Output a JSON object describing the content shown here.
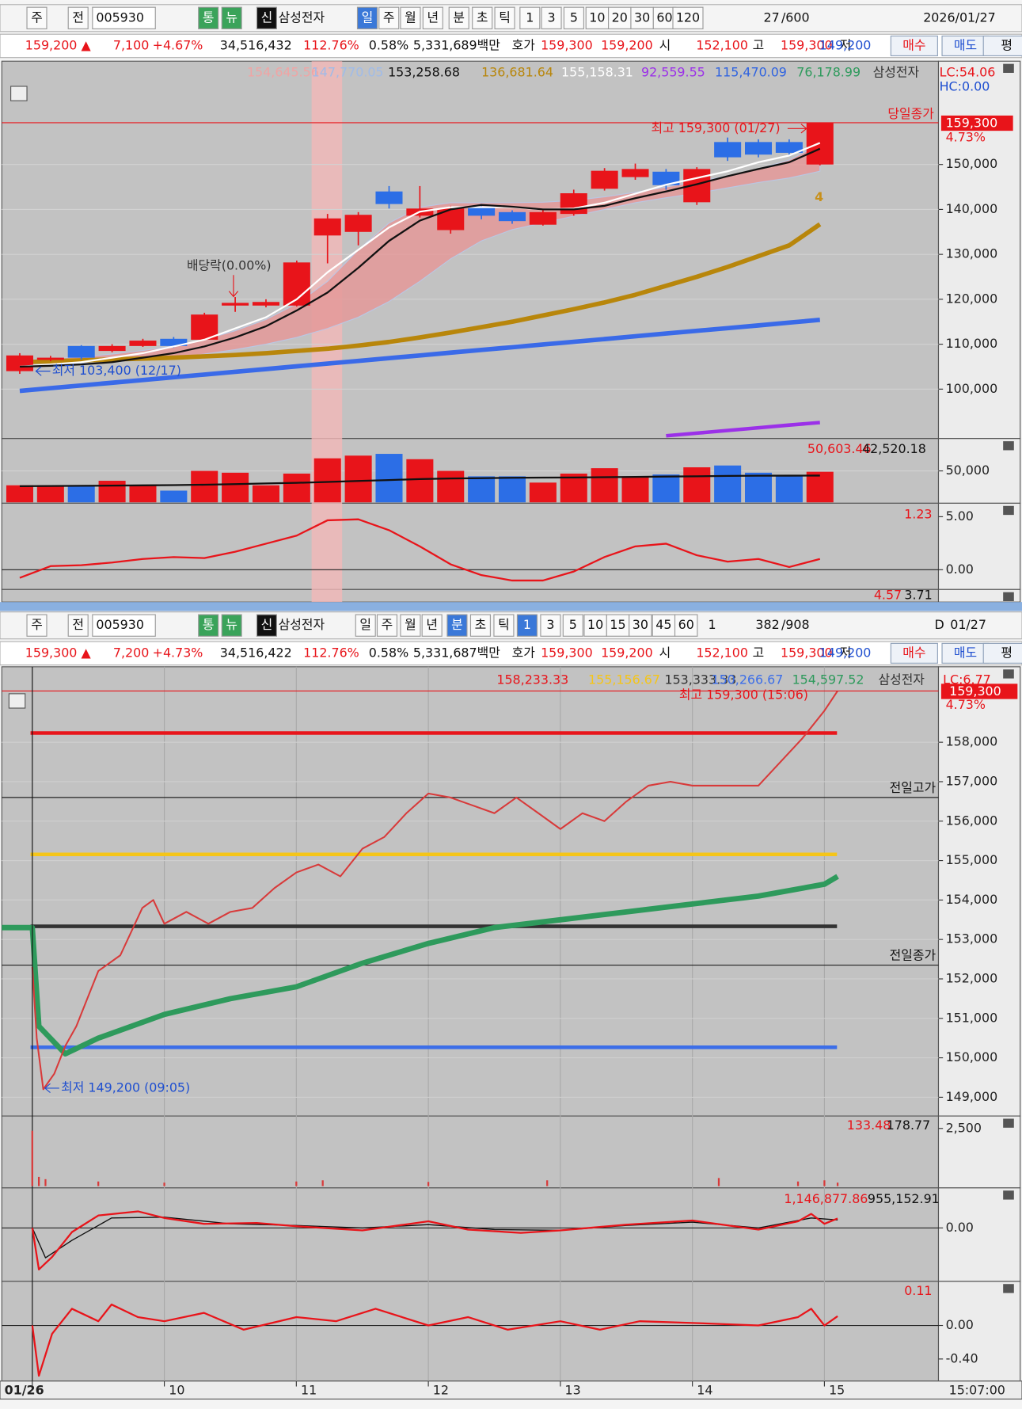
{
  "top_toolbar": {
    "items": [
      "주",
      "전",
      "005930",
      "통",
      "뉴",
      "신",
      "삼성전자",
      "일",
      "주",
      "월",
      "년",
      "분",
      "초",
      "틱",
      "1",
      "3",
      "5",
      "10",
      "20",
      "30",
      "60",
      "120",
      "27",
      "/600",
      "2026/01/27"
    ]
  },
  "top_quote": {
    "items": [
      "159,200 ▲",
      "7,100",
      "+4.67%",
      "34,516,432",
      "112.76%",
      "0.58%",
      "5,331,689백만",
      "호가",
      "159,300",
      "159,200",
      "시",
      "152,100",
      "고",
      "159,300",
      "저",
      "149,200",
      "매수",
      "매도",
      "평"
    ]
  },
  "daily_chart": {
    "legend": [
      {
        "text": "154,645.56",
        "color": "#f0a4a4"
      },
      {
        "text": "147,770.05",
        "color": "#9fbbe9"
      },
      {
        "text": "153,258.68",
        "color": "#111111"
      },
      {
        "text": "136,681.64",
        "color": "#b8860b"
      },
      {
        "text": "155,158.31",
        "color": "#ffffff"
      },
      {
        "text": "92,559.55",
        "color": "#9b30e8"
      },
      {
        "text": "115,470.09",
        "color": "#2f63e0"
      },
      {
        "text": "76,178.99",
        "color": "#2e9a5c"
      },
      {
        "text": "삼성전자",
        "color": "#333333"
      }
    ],
    "lc": "LC:54.06",
    "hc": "HC:0.00",
    "price": {
      "ylim": [
        89200,
        172600
      ],
      "yticks": [
        {
          "value": 100000,
          "label": "100,000"
        },
        {
          "value": 110000,
          "label": "110,000"
        },
        {
          "value": 120000,
          "label": "120,000"
        },
        {
          "value": 130000,
          "label": "130,000"
        },
        {
          "value": 140000,
          "label": "140,000"
        },
        {
          "value": 150000,
          "label": "150,000"
        }
      ],
      "up_color": "#e8141a",
      "down_color": "#2c6ee6",
      "open": [
        104000,
        106500,
        109600,
        108500,
        109600,
        111200,
        111000,
        118600,
        118600,
        118600,
        134200,
        135000,
        144000,
        138600,
        135400,
        140600,
        139400,
        136600,
        139000,
        144600,
        147200,
        148400,
        141600,
        155000,
        155000,
        155000,
        150000
      ],
      "close": [
        107500,
        107000,
        107000,
        109600,
        110800,
        109600,
        116600,
        119200,
        119400,
        128200,
        138000,
        138800,
        141200,
        140200,
        140200,
        138600,
        137400,
        139400,
        143600,
        148600,
        149000,
        145400,
        149000,
        151600,
        152200,
        152600,
        159200
      ],
      "high": [
        108000,
        107400,
        109800,
        110000,
        111200,
        111600,
        117000,
        120500,
        120000,
        128600,
        139000,
        139400,
        145200,
        145200,
        140800,
        141200,
        139800,
        139800,
        144400,
        149200,
        150200,
        149000,
        149400,
        156000,
        155600,
        155600,
        159300
      ],
      "low": [
        103400,
        106200,
        106600,
        108200,
        109400,
        109200,
        110800,
        117200,
        118200,
        118400,
        128000,
        132000,
        140200,
        138200,
        134600,
        137800,
        136800,
        136400,
        138600,
        144200,
        146600,
        144400,
        141000,
        150800,
        151600,
        152000,
        149800
      ],
      "band": {
        "color": "#e59a9a",
        "upper": [
          106500,
          106800,
          107200,
          107800,
          108600,
          109600,
          111000,
          113000,
          115500,
          119000,
          124000,
          131000,
          137000,
          140500,
          141500,
          141500,
          141500,
          141600,
          142000,
          142800,
          143800,
          145000,
          146200,
          147400,
          149000,
          151000,
          154500
        ],
        "lower": [
          105500,
          105600,
          105800,
          106000,
          106400,
          107000,
          107800,
          108800,
          110000,
          111500,
          113500,
          116000,
          119500,
          124000,
          129000,
          133000,
          135500,
          137000,
          138500,
          140000,
          141500,
          142600,
          143600,
          144800,
          146000,
          147000,
          148500
        ]
      },
      "lines": [
        {
          "color": "#b8860b",
          "width": 5,
          "values": [
            106000,
            106200,
            106400,
            106600,
            106800,
            107000,
            107300,
            107600,
            108000,
            108500,
            109000,
            109700,
            110500,
            111500,
            112600,
            113800,
            115000,
            116400,
            117800,
            119300,
            121000,
            123000,
            125000,
            127200,
            129600,
            132000,
            136700
          ]
        },
        {
          "color": "#3a6ae8",
          "width": 5,
          "values": [
            99600,
            100210,
            100820,
            101420,
            102030,
            102640,
            103250,
            103860,
            104460,
            105070,
            105680,
            106290,
            106900,
            107500,
            108110,
            108720,
            109330,
            109940,
            110540,
            111150,
            111760,
            112370,
            112980,
            113580,
            114190,
            114800,
            115410
          ]
        },
        {
          "color": "#9b30e8",
          "width": 4,
          "values": [
            null,
            null,
            null,
            null,
            null,
            null,
            null,
            null,
            null,
            null,
            null,
            null,
            null,
            null,
            null,
            null,
            null,
            null,
            null,
            null,
            null,
            89600,
            90200,
            90800,
            91400,
            92000,
            92560
          ]
        },
        {
          "color": "#ffffff",
          "width": 2,
          "values": [
            105000,
            105500,
            106000,
            107000,
            108000,
            109500,
            111000,
            113500,
            116000,
            120000,
            126000,
            131000,
            136000,
            139500,
            140500,
            140500,
            140500,
            140000,
            140200,
            141500,
            143500,
            145500,
            147000,
            148500,
            150500,
            152000,
            154800
          ]
        },
        {
          "color": "#111111",
          "width": 2,
          "values": [
            105000,
            105200,
            105500,
            106000,
            107000,
            108000,
            109500,
            111500,
            114000,
            117500,
            121500,
            127000,
            133000,
            137500,
            140000,
            141000,
            140600,
            140000,
            140000,
            140800,
            142500,
            144000,
            145600,
            147400,
            149000,
            150500,
            153500
          ]
        }
      ],
      "close_line": {
        "value": 159300,
        "label": "당일종가",
        "color": "#e8141a"
      },
      "close_badge": "159,300",
      "change_badge": "4.73%",
      "annotations": [
        "최고 159,300 (01/27)",
        "최저 103,400 (12/17)",
        "배당락(0.00%)",
        "4"
      ]
    },
    "volume": {
      "ylim": [
        0,
        98600
      ],
      "yticks": [
        {
          "value": 50000,
          "label": "50,000"
        }
      ],
      "values": [
        27100,
        27100,
        27100,
        34300,
        27100,
        18600,
        50000,
        47100,
        27100,
        45700,
        70000,
        74300,
        77100,
        68600,
        50000,
        41400,
        41400,
        31400,
        45700,
        54300,
        41400,
        44300,
        55700,
        58600,
        47100,
        41400,
        48600
      ],
      "ma": {
        "color": "#111111",
        "values": [
          25700,
          26000,
          26300,
          26600,
          27000,
          27400,
          28000,
          29000,
          30000,
          31000,
          32500,
          34000,
          35500,
          37000,
          38000,
          38500,
          39000,
          39300,
          39600,
          40000,
          40500,
          41000,
          41500,
          42000,
          42300,
          42500,
          42520
        ]
      },
      "legend": [
        {
          "text": "50,603.46",
          "color": "#e8141a"
        },
        {
          "text": "42,520.18",
          "color": "#111111"
        }
      ]
    },
    "indicator": {
      "ylim": [
        -1.78,
        6.1
      ],
      "yticks": [
        {
          "value": 5,
          "label": "5.00"
        },
        {
          "value": 0,
          "label": "0.00"
        }
      ],
      "color": "#e8141a",
      "values": [
        -0.76,
        0.34,
        0.42,
        0.68,
        1.02,
        1.19,
        1.1,
        1.69,
        2.46,
        3.22,
        4.66,
        4.75,
        3.73,
        2.2,
        0.51,
        -0.51,
        -1.02,
        -1.02,
        -0.17,
        1.19,
        2.2,
        2.46,
        1.36,
        0.76,
        1.02,
        0.25,
        1.02
      ],
      "legend": [
        {
          "text": "1.23",
          "color": "#e8141a"
        }
      ]
    },
    "indicator2": {
      "legend": [
        {
          "text": "4.57",
          "color": "#e8141a"
        },
        {
          "text": "3.71",
          "color": "#111111"
        }
      ]
    }
  },
  "bottom_toolbar": {
    "items": [
      "주",
      "전",
      "005930",
      "통",
      "뉴",
      "신",
      "삼성전자",
      "일",
      "주",
      "월",
      "년",
      "분",
      "초",
      "틱",
      "1",
      "3",
      "5",
      "10",
      "15",
      "30",
      "45",
      "60",
      "1",
      "382",
      "/908",
      "D",
      "01/27"
    ]
  },
  "bottom_quote": {
    "items": [
      "159,300 ▲",
      "7,200",
      "+4.73%",
      "34,516,422",
      "112.76%",
      "0.58%",
      "5,331,687백만",
      "호가",
      "159,300",
      "159,200",
      "시",
      "152,100",
      "고",
      "159,300",
      "저",
      "149,200",
      "매수",
      "매도",
      "평"
    ]
  },
  "minute_chart": {
    "title": "삼성전자",
    "lc": "LC:6.77",
    "close_badge": "159,300",
    "change_badge": "4.73%",
    "time_label": "15:07:00",
    "xlim": [
      8.769,
      15.864
    ],
    "xticks": [
      {
        "value": 9,
        "label": "01/26"
      },
      10,
      11,
      12,
      13,
      14,
      15
    ],
    "price": {
      "ylim": [
        148570,
        159845
      ],
      "yticks": [
        {
          "value": 149000,
          "label": "149,000"
        },
        {
          "value": 150000,
          "label": "150,000"
        },
        {
          "value": 151000,
          "label": "151,000"
        },
        {
          "value": 152000,
          "label": "152,000"
        },
        {
          "value": 153000,
          "label": "153,000"
        },
        {
          "value": 154000,
          "label": "154,000"
        },
        {
          "value": 155000,
          "label": "155,000"
        },
        {
          "value": 156000,
          "label": "156,000"
        },
        {
          "value": 157000,
          "label": "157,000"
        },
        {
          "value": 158000,
          "label": "158,000"
        }
      ],
      "color": "#d83a3a",
      "x": [
        9,
        9.0333,
        9.0833,
        9.1667,
        9.25,
        9.3333,
        9.4167,
        9.5,
        9.6667,
        9.8333,
        9.9167,
        10,
        10.1667,
        10.3333,
        10.5,
        10.6667,
        10.8333,
        11,
        11.1667,
        11.3333,
        11.5,
        11.6667,
        11.8333,
        12,
        12.1667,
        12.3333,
        12.5,
        12.6667,
        12.8333,
        13,
        13.1667,
        13.3333,
        13.5,
        13.6667,
        13.8333,
        14,
        14.1667,
        14.3333,
        14.5,
        14.6667,
        14.8333,
        15,
        15.1
      ],
      "values": [
        152300,
        150500,
        149200,
        149600,
        150300,
        150800,
        151500,
        152200,
        152600,
        153800,
        154000,
        153400,
        153700,
        153400,
        153700,
        153800,
        154300,
        154700,
        154900,
        154600,
        155300,
        155600,
        156200,
        156700,
        156600,
        156400,
        156200,
        156600,
        156200,
        155800,
        156200,
        156000,
        156500,
        156900,
        157000,
        156900,
        156900,
        156900,
        156900,
        157500,
        158100,
        158800,
        159300
      ],
      "levels": [
        {
          "value": 158233.33,
          "label": "158,233.33",
          "color": "#e8141a"
        },
        {
          "value": 155156.67,
          "label": "155,156.67",
          "color": "#f5c518"
        },
        {
          "value": 153333.33,
          "label": "153,333.33",
          "color": "#333333"
        },
        {
          "value": 150266.67,
          "label": "150,266.67",
          "color": "#3c6ee8"
        }
      ],
      "vwap": {
        "label": "154,597.52",
        "color": "#2e9a5c",
        "x": [
          8.769,
          9,
          9.05,
          9.25,
          9.5,
          10,
          10.5,
          11,
          11.5,
          12,
          12.5,
          13,
          13.5,
          14,
          14.5,
          15,
          15.1
        ],
        "values": [
          153300,
          153300,
          150800,
          150100,
          150500,
          151100,
          151500,
          151800,
          152400,
          152900,
          153300,
          153500,
          153700,
          153900,
          154100,
          154400,
          154600
        ]
      },
      "ref_lines": [
        {
          "value": 156600,
          "label": "전일고가"
        },
        {
          "value": 152350,
          "label": "전일종가"
        }
      ],
      "close_line": {
        "value": 159300,
        "color": "#e8141a"
      },
      "annotations": [
        "최고 159,300 (15:06)",
        "최저 149,200 (09:05)"
      ]
    },
    "volume": {
      "ylim": [
        0,
        2962
      ],
      "yticks": [
        {
          "value": 2500,
          "label": "2,500"
        }
      ],
      "color": "#d83a3a",
      "x": [
        9,
        9.05,
        9.1,
        9.5,
        10,
        11,
        11.2,
        12,
        12.9,
        14.2,
        14.8,
        15,
        15.1
      ],
      "values": [
        2400,
        400,
        300,
        200,
        150,
        200,
        250,
        180,
        250,
        350,
        200,
        250,
        150
      ],
      "legend": [
        {
          "text": "133.48",
          "color": "#e8141a"
        },
        {
          "text": "178.77",
          "color": "#111111"
        }
      ]
    },
    "macd": {
      "ylim": [
        -6000000,
        4500000
      ],
      "yticks": [
        {
          "value": 0,
          "label": "0.00"
        }
      ],
      "series": [
        {
          "color": "#e8141a",
          "x": [
            9,
            9.05,
            9.15,
            9.3,
            9.5,
            9.8,
            10,
            10.3,
            10.7,
            11,
            11.5,
            12,
            12.3,
            12.7,
            13,
            13.5,
            14,
            14.5,
            14.8,
            14.9,
            15,
            15.1
          ],
          "values": [
            0,
            -5000000,
            -3500000,
            -500000,
            1500000,
            2000000,
            1200000,
            500000,
            600000,
            200000,
            -300000,
            800000,
            -200000,
            -600000,
            -300000,
            400000,
            900000,
            -200000,
            800000,
            1700000,
            500000,
            1146877.86
          ]
        },
        {
          "color": "#111111",
          "x": [
            9,
            9.1,
            9.3,
            9.6,
            10,
            10.5,
            11,
            11.5,
            12,
            12.5,
            13,
            13.5,
            14,
            14.5,
            14.9,
            15.1
          ],
          "values": [
            0,
            -3600000,
            -1500000,
            1200000,
            1300000,
            500000,
            300000,
            0,
            400000,
            -200000,
            -300000,
            300000,
            700000,
            0,
            1200000,
            955152.91
          ]
        }
      ],
      "legend": [
        {
          "text": "1,146,877.86",
          "color": "#e8141a"
        },
        {
          "text": "955,152.91",
          "color": "#111111"
        }
      ]
    },
    "osc": {
      "ylim": [
        -0.642,
        0.505
      ],
      "yticks": [
        {
          "value": 0,
          "label": "0.00"
        },
        {
          "value": -0.4,
          "label": "-0.40"
        }
      ],
      "series": [
        {
          "color": "#e8141a",
          "x": [
            9,
            9.05,
            9.15,
            9.3,
            9.5,
            9.6,
            9.8,
            10,
            10.3,
            10.6,
            11,
            11.3,
            11.6,
            12,
            12.3,
            12.6,
            13,
            13.3,
            13.6,
            14,
            14.5,
            14.8,
            14.9,
            15,
            15.1
          ],
          "values": [
            0,
            -0.6,
            -0.1,
            0.2,
            0.05,
            0.25,
            0.1,
            0.05,
            0.15,
            -0.05,
            0.1,
            0.05,
            0.2,
            0,
            0.1,
            -0.05,
            0.05,
            -0.05,
            0.05,
            0.03,
            0,
            0.1,
            0.2,
            0,
            0.11
          ]
        }
      ],
      "legend": [
        {
          "text": "0.11",
          "color": "#e8141a"
        }
      ]
    }
  }
}
